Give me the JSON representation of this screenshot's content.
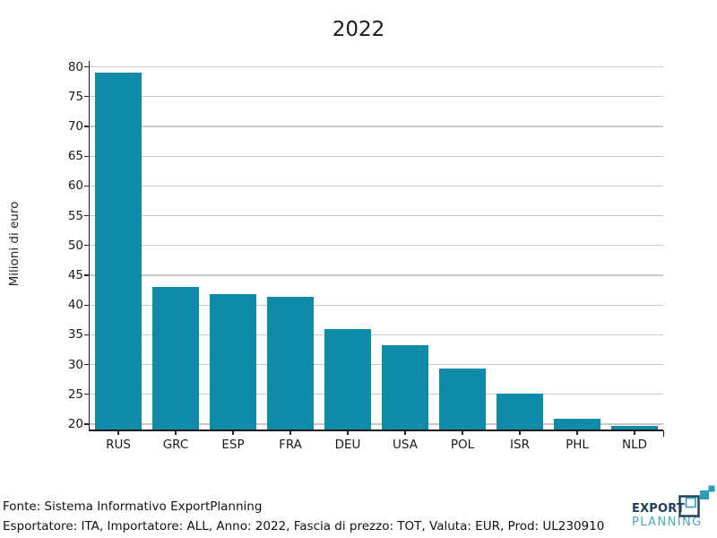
{
  "chart_data": {
    "type": "bar",
    "title": "2022",
    "xlabel": "",
    "ylabel": "Milioni di euro",
    "categories": [
      "RUS",
      "GRC",
      "ESP",
      "FRA",
      "DEU",
      "USA",
      "POL",
      "ISR",
      "PHL",
      "NLD"
    ],
    "values": [
      79.0,
      43.1,
      41.8,
      41.4,
      35.9,
      33.2,
      29.3,
      25.1,
      20.9,
      19.7
    ],
    "ylim": [
      19.1,
      81.0
    ],
    "yticks": [
      20,
      25,
      30,
      35,
      40,
      45,
      50,
      55,
      60,
      65,
      70,
      75,
      80
    ],
    "grid": true,
    "legend": false,
    "bar_color": "#0f8ba8"
  },
  "footer": {
    "source_line": "Fonte: Sistema Informativo ExportPlanning",
    "params_line": "Esportatore: ITA, Importatore: ALL, Anno: 2022, Fascia di prezzo: TOT, Valuta: EUR, Prod: UL230910"
  },
  "logo": {
    "word1": "EXPORT",
    "word2": "PLANNING",
    "navy": "#1d3c5e",
    "icon_teal": "#2b9cba",
    "word2_color": "#4aa3c2"
  },
  "colors": {
    "bar": "#0f8ba8",
    "gridline": "#c8c8c8",
    "axis": "#1a1a1a",
    "text": "#1a1a1a"
  }
}
